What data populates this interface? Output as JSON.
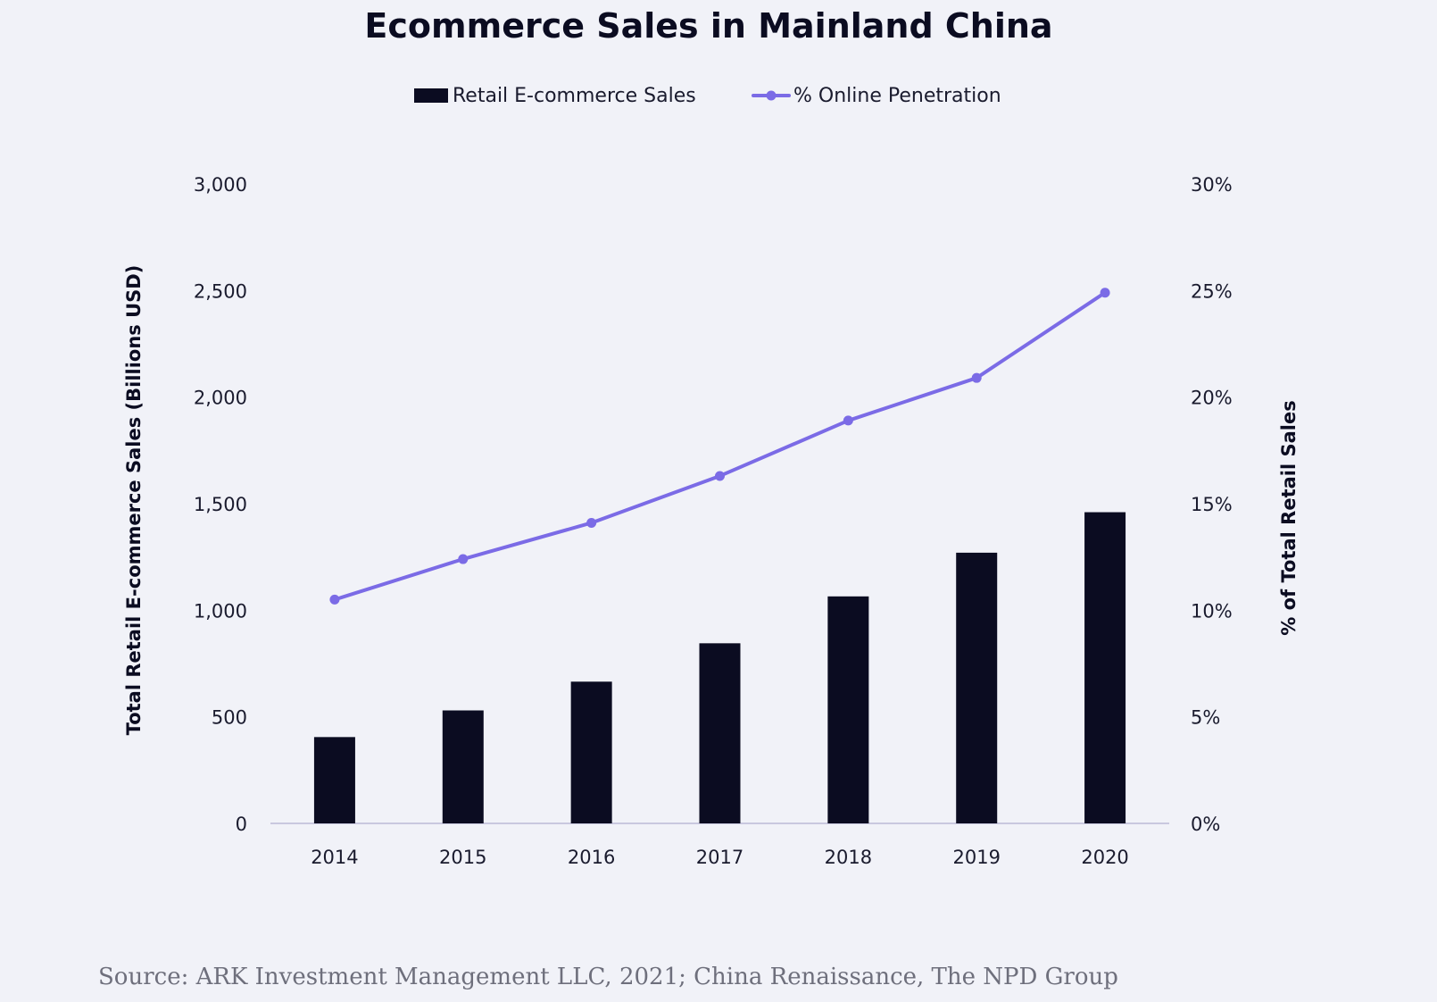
{
  "chart_data": {
    "type": "bar",
    "title": "Ecommerce Sales in Mainland China",
    "categories": [
      "2014",
      "2015",
      "2016",
      "2017",
      "2018",
      "2019",
      "2020"
    ],
    "series": [
      {
        "name": "Retail E-commerce Sales",
        "type": "bar",
        "axis": "left",
        "color": "#0b0c21",
        "values": [
          405,
          530,
          665,
          845,
          1065,
          1270,
          1460
        ]
      },
      {
        "name": "% Online Penetration",
        "type": "line",
        "axis": "right",
        "color": "#7b6be6",
        "values": [
          10.5,
          12.4,
          14.1,
          16.3,
          18.9,
          20.9,
          24.9
        ]
      }
    ],
    "ylabel": "Total Retail E-commerce Sales (Billions USD)",
    "ylabel_right": "% of Total Retail Sales",
    "ylim": [
      0,
      3000
    ],
    "ylim_right": [
      0,
      30
    ],
    "yticks": [
      "0",
      "500",
      "1,000",
      "1,500",
      "2,000",
      "2,500",
      "3,000"
    ],
    "yticks_right": [
      "0%",
      "5%",
      "10%",
      "15%",
      "20%",
      "25%",
      "30%"
    ],
    "legend_position": "top-center",
    "grid": false,
    "source": "Source: ARK Investment Management LLC, 2021; China Renaissance, The NPD Group"
  }
}
